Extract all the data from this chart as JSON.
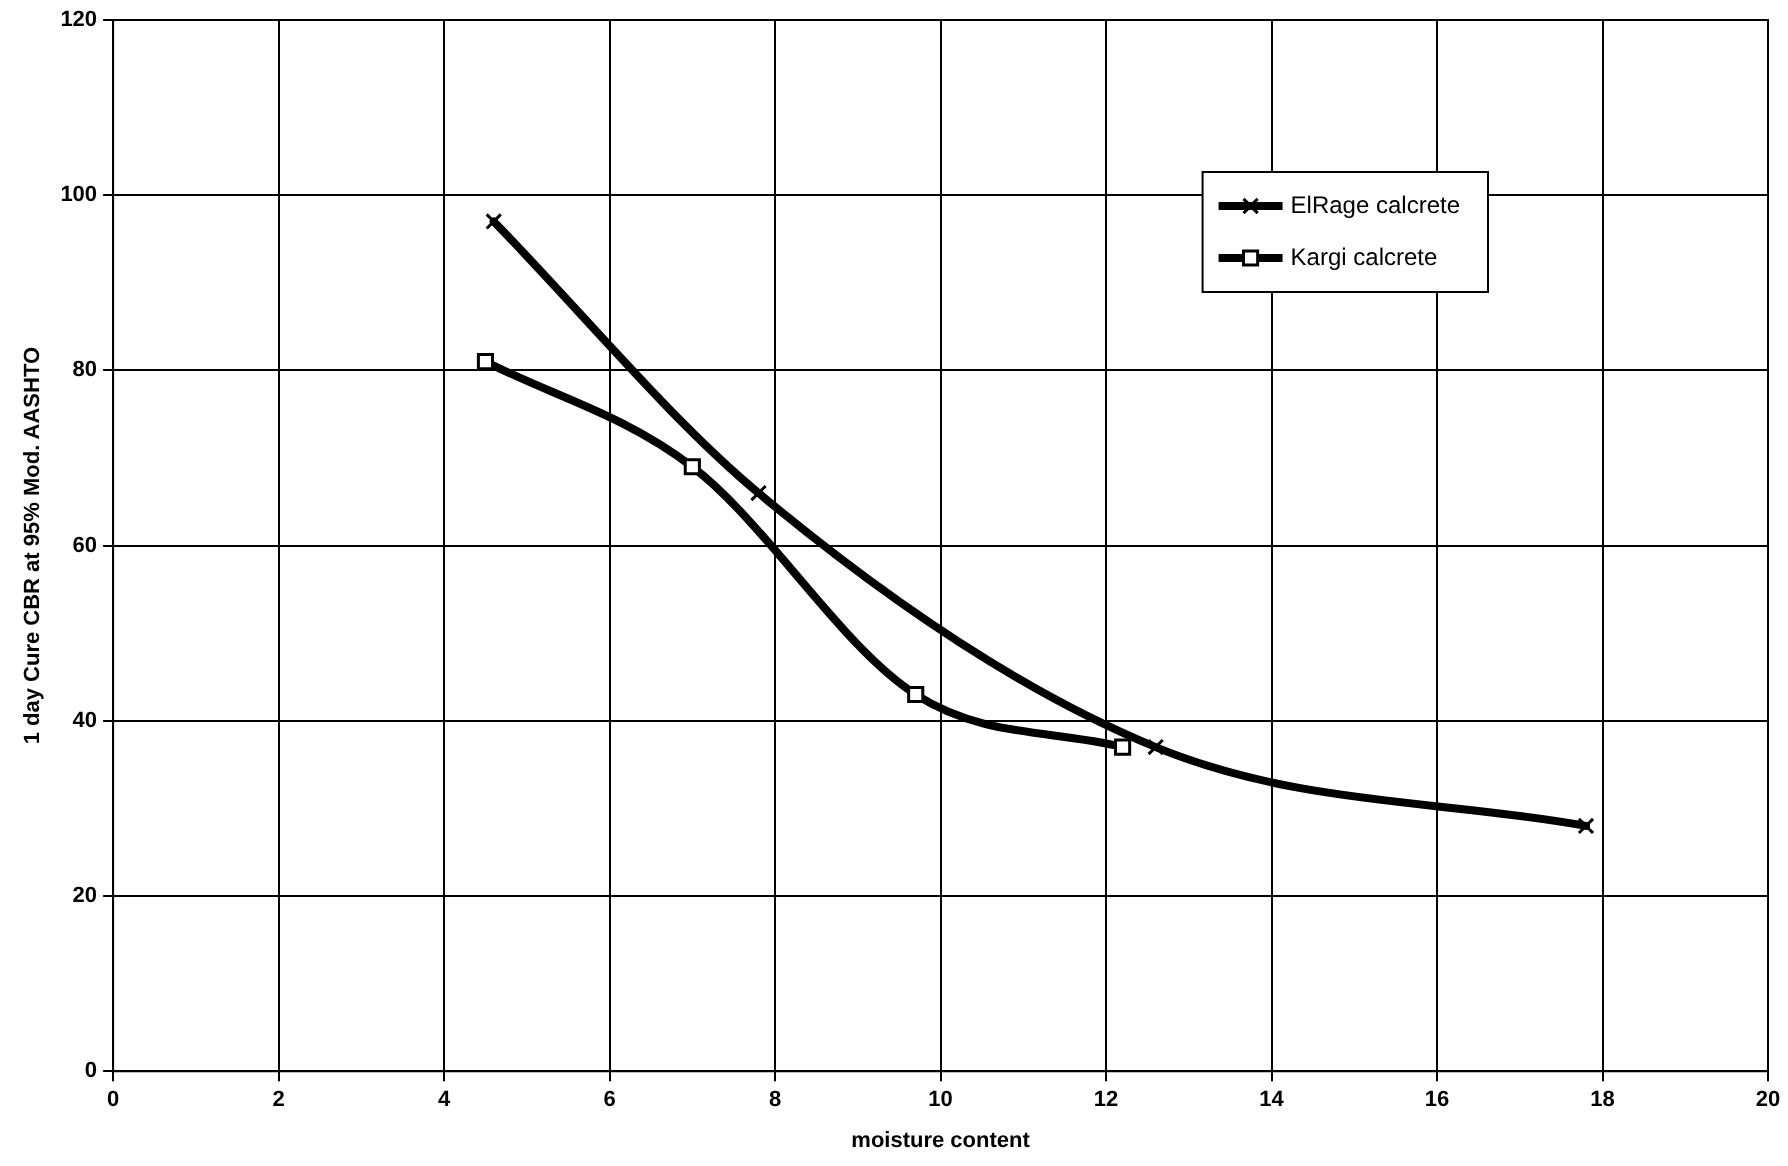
{
  "chart_data": {
    "type": "line",
    "xlabel": "moisture content",
    "ylabel": "1 day Cure CBR at 95% Mod. AASHTO",
    "xlim": [
      0,
      20
    ],
    "xticks": [
      0,
      2,
      4,
      6,
      8,
      10,
      12,
      14,
      16,
      18,
      20
    ],
    "ylim": [
      0,
      120
    ],
    "yticks": [
      0,
      20,
      40,
      60,
      80,
      100,
      120
    ],
    "grid": true,
    "legend": "top right",
    "series": [
      {
        "name": "ElRage calcrete",
        "color": "#000000",
        "marker": "cross",
        "x": [
          4.6,
          7.8,
          12.6,
          17.8
        ],
        "values": [
          97,
          66,
          37,
          28
        ]
      },
      {
        "name": "Kargi calcrete",
        "color": "#000000",
        "marker": "square",
        "x": [
          4.5,
          7.0,
          9.7,
          12.2
        ],
        "values": [
          81,
          69,
          43,
          37
        ]
      }
    ]
  }
}
